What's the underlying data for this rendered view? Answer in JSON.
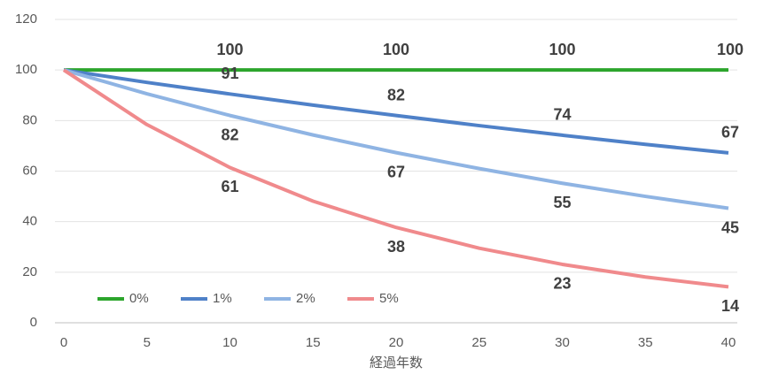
{
  "chart_data": {
    "type": "line",
    "x_label": "経過年数",
    "x": [
      0,
      5,
      10,
      15,
      20,
      25,
      30,
      35,
      40
    ],
    "xlim": [
      0,
      40
    ],
    "xticks": [
      0,
      5,
      10,
      15,
      20,
      25,
      30,
      35,
      40
    ],
    "ylim": [
      0,
      120
    ],
    "yticks": [
      0,
      20,
      40,
      60,
      80,
      100,
      120
    ],
    "grid": true,
    "legend": "bottom-left",
    "series": [
      {
        "name": "0%",
        "color": "#2ca52c",
        "values": [
          100,
          100,
          100,
          100,
          100,
          100,
          100,
          100,
          100
        ],
        "value_labels": [
          null,
          null,
          "100",
          null,
          "100",
          null,
          "100",
          null,
          "100"
        ]
      },
      {
        "name": "1%",
        "color": "#4f81c8",
        "values": [
          100,
          95.1,
          90.5,
          86.1,
          82.0,
          78.0,
          74.2,
          70.6,
          67.2
        ],
        "value_labels": [
          null,
          null,
          "91",
          null,
          "82",
          null,
          "74",
          null,
          "67"
        ]
      },
      {
        "name": "2%",
        "color": "#8fb4e3",
        "values": [
          100,
          90.6,
          82.0,
          74.3,
          67.3,
          61.0,
          55.2,
          50.0,
          45.3
        ],
        "value_labels": [
          null,
          null,
          "82",
          null,
          "67",
          null,
          "55",
          null,
          "45"
        ]
      },
      {
        "name": "5%",
        "color": "#f08a8c",
        "values": [
          100,
          78.4,
          61.4,
          48.1,
          37.7,
          29.5,
          23.1,
          18.1,
          14.2
        ],
        "value_labels": [
          null,
          null,
          "61",
          null,
          "38",
          null,
          "23",
          null,
          "14"
        ]
      }
    ]
  }
}
